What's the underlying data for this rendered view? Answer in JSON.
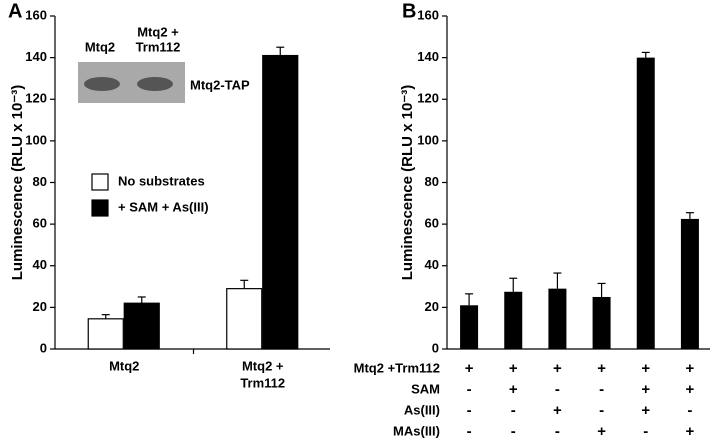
{
  "chart_data": [
    {
      "type": "bar",
      "panel_label": "A",
      "y_label": "Luminescence (RLU x 10⁻³)",
      "categories": [
        [
          "Mtq2"
        ],
        [
          "Mtq2 +",
          "Trm112"
        ]
      ],
      "series": [
        {
          "name": "No substrates",
          "color": "#ffffff",
          "values": [
            14.5,
            29
          ],
          "errors": [
            2,
            4
          ]
        },
        {
          "name": "+ SAM + As(III)",
          "color": "#000000",
          "values": [
            22,
            141
          ],
          "errors": [
            3,
            4
          ]
        }
      ],
      "ylim": [
        0,
        160
      ],
      "yticks": [
        0,
        20,
        40,
        60,
        80,
        100,
        120,
        140,
        160
      ],
      "inset": {
        "lanes": [
          [
            "Mtq2"
          ],
          [
            "Mtq2 +",
            "Trm112"
          ]
        ],
        "band_label": "Mtq2-TAP"
      }
    },
    {
      "type": "bar",
      "panel_label": "B",
      "y_label": "Luminescence (RLU x 10⁻³)",
      "color": "#000000",
      "values": [
        21,
        27.5,
        29,
        25,
        140,
        62.5
      ],
      "errors": [
        5.5,
        6.5,
        7.5,
        6.5,
        2.5,
        3
      ],
      "ylim": [
        0,
        160
      ],
      "yticks": [
        0,
        20,
        40,
        60,
        80,
        100,
        120,
        140,
        160
      ],
      "conditions": [
        {
          "name": "Mtq2 +Trm112",
          "signs": [
            "+",
            "+",
            "+",
            "+",
            "+",
            "+"
          ]
        },
        {
          "name": "SAM",
          "signs": [
            "-",
            "+",
            "-",
            "-",
            "+",
            "+"
          ]
        },
        {
          "name": "As(III)",
          "signs": [
            "-",
            "-",
            "+",
            "-",
            "+",
            "-"
          ]
        },
        {
          "name": "MAs(III)",
          "signs": [
            "-",
            "-",
            "-",
            "+",
            "-",
            "+"
          ]
        }
      ]
    }
  ]
}
